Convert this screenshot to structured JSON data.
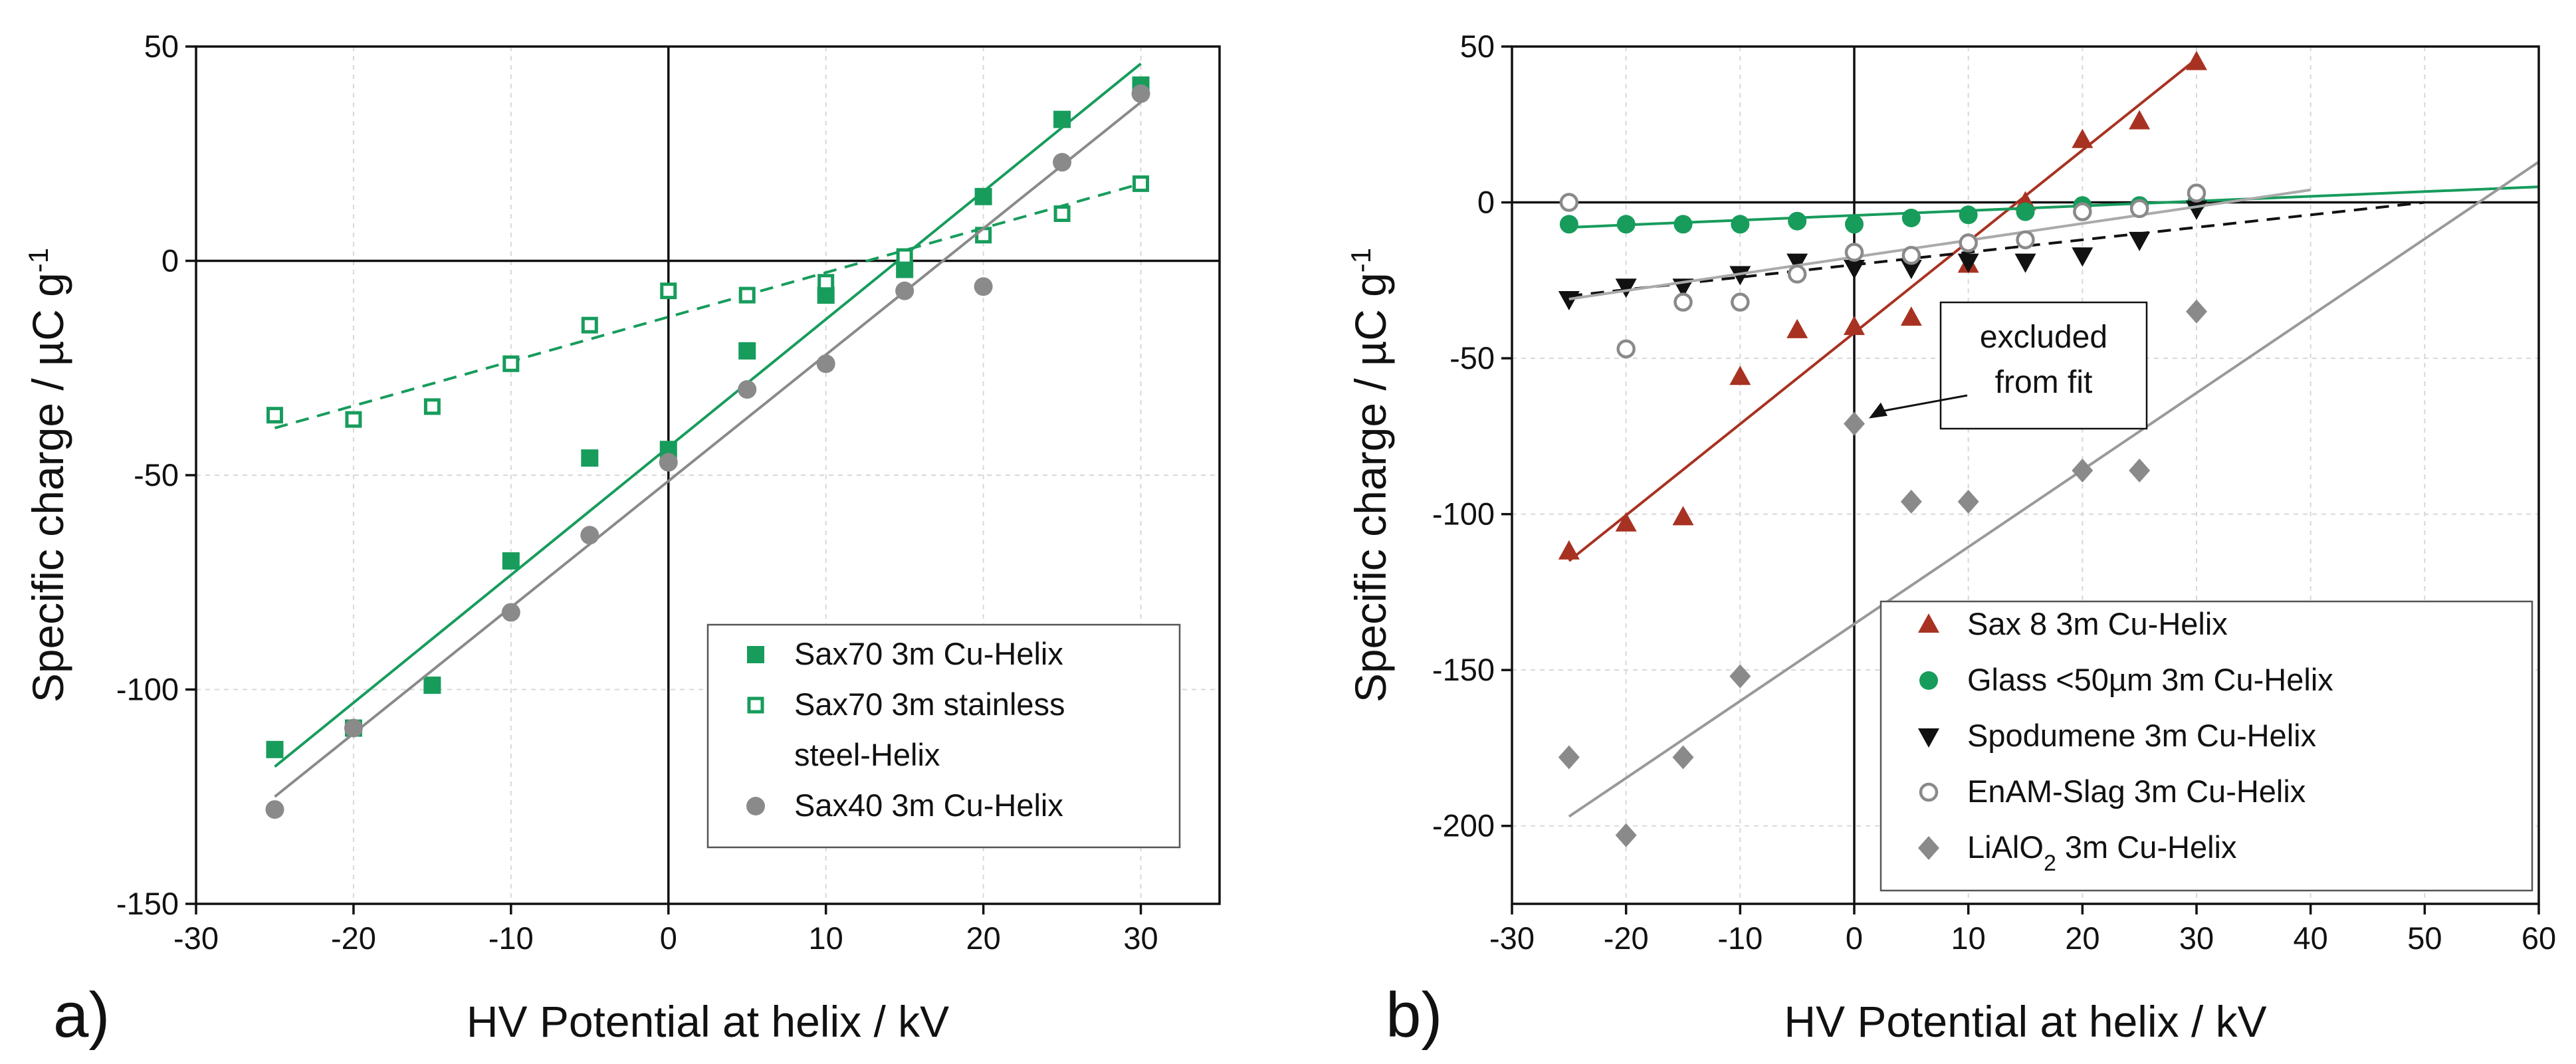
{
  "chart_data": [
    {
      "type": "scatter",
      "panel_label": "a)",
      "xlabel": "HV Potential at helix / kV",
      "ylabel": "Specific charge / µC g",
      "ylabel_exponent": "-1",
      "xlim": [
        -30,
        35
      ],
      "ylim": [
        -150,
        50
      ],
      "xticks": [
        -30,
        -20,
        -10,
        0,
        10,
        20,
        30
      ],
      "yticks": [
        -150,
        -100,
        -50,
        0,
        50
      ],
      "legend_position": "bottom-right",
      "series": [
        {
          "name": "Sax70 3m Cu-Helix",
          "legend_lines": [
            "Sax70 3m Cu-Helix"
          ],
          "marker": "square-filled",
          "color": "#179c5c",
          "x": [
            -25,
            -20,
            -15,
            -10,
            -5,
            0,
            5,
            10,
            15,
            20,
            25,
            30
          ],
          "y": [
            -114,
            -109,
            -99,
            -70,
            -46,
            -44,
            -21,
            -8,
            -2,
            15,
            33,
            41
          ],
          "fit": {
            "style": "solid",
            "color": "#179c5c",
            "x": [
              -25,
              30
            ],
            "y": [
              -118,
              46
            ]
          }
        },
        {
          "name": "Sax70 3m stainless steel-Helix",
          "legend_lines": [
            "Sax70 3m stainless",
            "steel-Helix"
          ],
          "marker": "square-open",
          "color": "#179c5c",
          "x": [
            -25,
            -20,
            -15,
            -10,
            -5,
            0,
            5,
            10,
            15,
            20,
            25,
            30
          ],
          "y": [
            -36,
            -37,
            -34,
            -24,
            -15,
            -7,
            -8,
            -5,
            1,
            6,
            11,
            18
          ],
          "fit": {
            "style": "dashed",
            "color": "#179c5c",
            "x": [
              -25,
              30
            ],
            "y": [
              -39,
              18
            ]
          }
        },
        {
          "name": "Sax40 3m Cu-Helix",
          "legend_lines": [
            "Sax40 3m Cu-Helix"
          ],
          "marker": "circle-filled",
          "color": "#8a8a8a",
          "x": [
            -25,
            -20,
            -10,
            -5,
            0,
            5,
            10,
            15,
            20,
            25,
            30
          ],
          "y": [
            -128,
            -109,
            -82,
            -64,
            -47,
            -30,
            -24,
            -7,
            -6,
            23,
            39
          ],
          "fit": {
            "style": "solid",
            "color": "#8a8a8a",
            "x": [
              -25,
              30
            ],
            "y": [
              -125,
              37
            ]
          }
        }
      ]
    },
    {
      "type": "scatter",
      "panel_label": "b)",
      "xlabel": "HV Potential at helix / kV",
      "ylabel": "Specific charge / µC g",
      "ylabel_exponent": "-1",
      "xlim": [
        -30,
        60
      ],
      "ylim": [
        -225,
        50
      ],
      "xticks": [
        -30,
        -20,
        -10,
        0,
        10,
        20,
        30,
        40,
        50,
        60
      ],
      "yticks": [
        -200,
        -150,
        -100,
        -50,
        0,
        50
      ],
      "legend_position": "bottom-right",
      "annotation": {
        "lines": [
          "excluded",
          "from fit"
        ],
        "target": {
          "x": 0,
          "y": -71
        }
      },
      "series": [
        {
          "name": "Sax 8 3m Cu-Helix",
          "legend_lines": [
            "Sax 8 3m Cu-Helix"
          ],
          "marker": "triangle-up-filled",
          "color": "#a83222",
          "x": [
            -25,
            -20,
            -15,
            -10,
            -5,
            0,
            5,
            10,
            15,
            20,
            25,
            30
          ],
          "y": [
            -112,
            -103,
            -101,
            -56,
            -41,
            -40,
            -37,
            -20,
            0,
            20,
            26,
            45
          ],
          "fit": {
            "style": "solid",
            "color": "#a83222",
            "x": [
              -25,
              30
            ],
            "y": [
              -115,
              46
            ]
          }
        },
        {
          "name": "Glass <50µm 3m Cu-Helix",
          "legend_lines": [
            "Glass <50µm 3m Cu-Helix"
          ],
          "marker": "circle-filled",
          "color": "#179c5c",
          "x": [
            -25,
            -20,
            -15,
            -10,
            -5,
            0,
            5,
            10,
            15,
            20,
            25,
            30
          ],
          "y": [
            -7,
            -7,
            -7,
            -7,
            -6,
            -7,
            -5,
            -4,
            -3,
            -1,
            -1,
            0
          ],
          "fit": {
            "style": "solid",
            "color": "#179c5c",
            "x": [
              -25,
              60
            ],
            "y": [
              -8,
              5
            ]
          }
        },
        {
          "name": "Spodumene 3m Cu-Helix",
          "legend_lines": [
            "Spodumene 3m Cu-Helix"
          ],
          "marker": "triangle-down-filled",
          "color": "#111111",
          "x": [
            -25,
            -20,
            -15,
            -10,
            -5,
            0,
            5,
            10,
            15,
            20,
            25,
            30
          ],
          "y": [
            -31,
            -27,
            -27,
            -23,
            -19,
            -21,
            -21,
            -19,
            -19,
            -17,
            -12,
            -2
          ],
          "fit": {
            "style": "dashed",
            "color": "#111111",
            "x": [
              -25,
              50
            ],
            "y": [
              -30,
              0
            ]
          }
        },
        {
          "name": "EnAM-Slag 3m Cu-Helix",
          "legend_lines": [
            "EnAM-Slag 3m Cu-Helix"
          ],
          "marker": "circle-open",
          "color": "#8a8a8a",
          "x": [
            -25,
            -20,
            -15,
            -10,
            -5,
            0,
            5,
            10,
            15,
            20,
            25,
            30
          ],
          "y": [
            0,
            -47,
            -32,
            -32,
            -23,
            -16,
            -17,
            -13,
            -12,
            -3,
            -2,
            3
          ],
          "fit": {
            "style": "solid",
            "color": "#aaaaaa",
            "x": [
              -25,
              40
            ],
            "y": [
              -31,
              4
            ]
          }
        },
        {
          "name": "LiAlO2 3m Cu-Helix",
          "legend_lines": [
            "LiAlO"
          ],
          "legend_subscript": "2",
          "legend_suffix": " 3m Cu-Helix",
          "marker": "diamond-filled",
          "color": "#8a8a8a",
          "x": [
            -25,
            -20,
            -15,
            -10,
            0,
            5,
            10,
            20,
            25,
            30
          ],
          "y": [
            -178,
            -203,
            -178,
            -152,
            -71,
            -96,
            -96,
            -86,
            -86,
            -35
          ],
          "fit": {
            "style": "solid",
            "color": "#999999",
            "x": [
              -25,
              60
            ],
            "y": [
              -197,
              13
            ]
          }
        }
      ]
    }
  ]
}
